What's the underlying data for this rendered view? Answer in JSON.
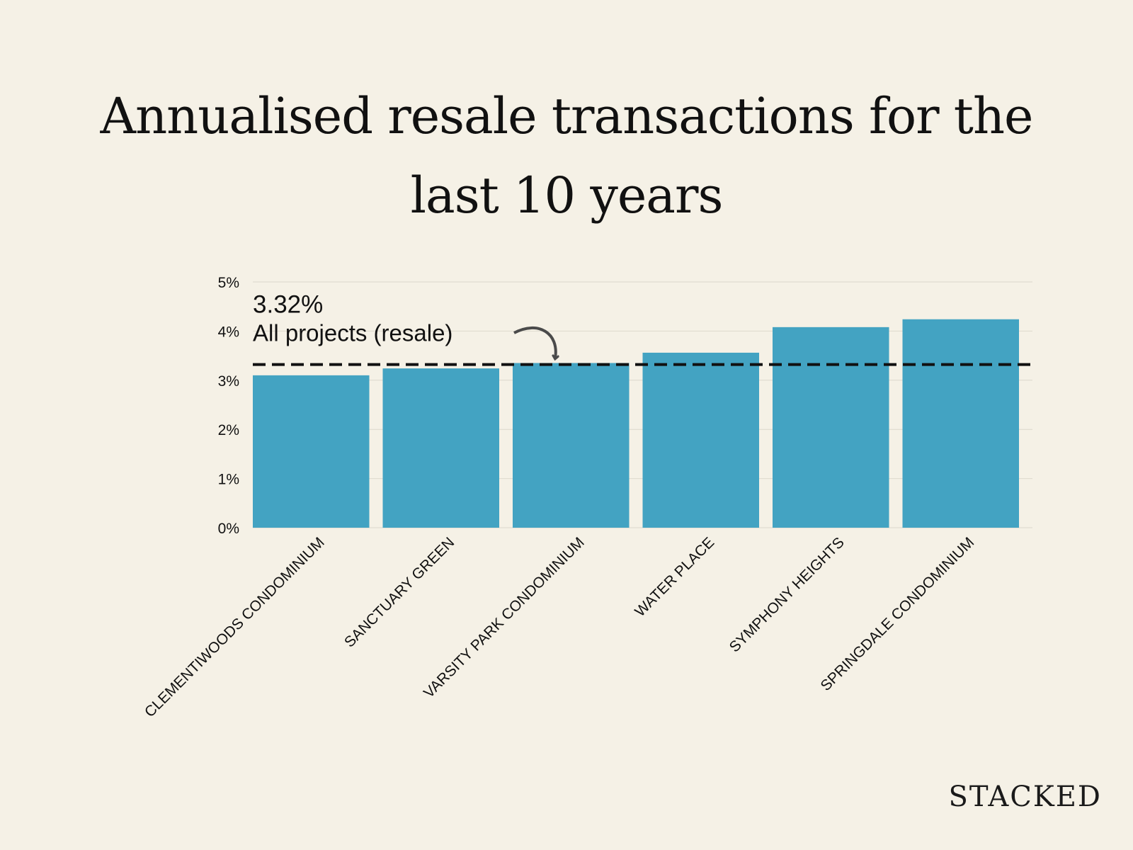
{
  "title_lines": [
    "Annualised resale transactions for the",
    "last 10 years"
  ],
  "brand": "STACKED",
  "colors": {
    "background": "#f5f1e6",
    "bar": "#43a3c2",
    "reference_line": "#111111",
    "text": "#111111"
  },
  "chart_data": {
    "type": "bar",
    "title": "Annualised resale transactions for the last 10 years",
    "xlabel": "",
    "ylabel": "",
    "categories": [
      "CLEMENTIWOODS CONDOMINIUM",
      "SANCTUARY GREEN",
      "VARSITY PARK CONDOMINIUM",
      "WATER PLACE",
      "SYMPHONY HEIGHTS",
      "SPRINGDALE CONDOMINIUM"
    ],
    "values": [
      3.1,
      3.24,
      3.35,
      3.56,
      4.08,
      4.24
    ],
    "value_unit": "%",
    "ylim": [
      0,
      5
    ],
    "yticks": [
      "0%",
      "1%",
      "2%",
      "3%",
      "4%",
      "5%"
    ],
    "grid": true,
    "reference_line": {
      "value": 3.32,
      "value_label": "3.32%",
      "label": "All projects (resale)"
    }
  }
}
